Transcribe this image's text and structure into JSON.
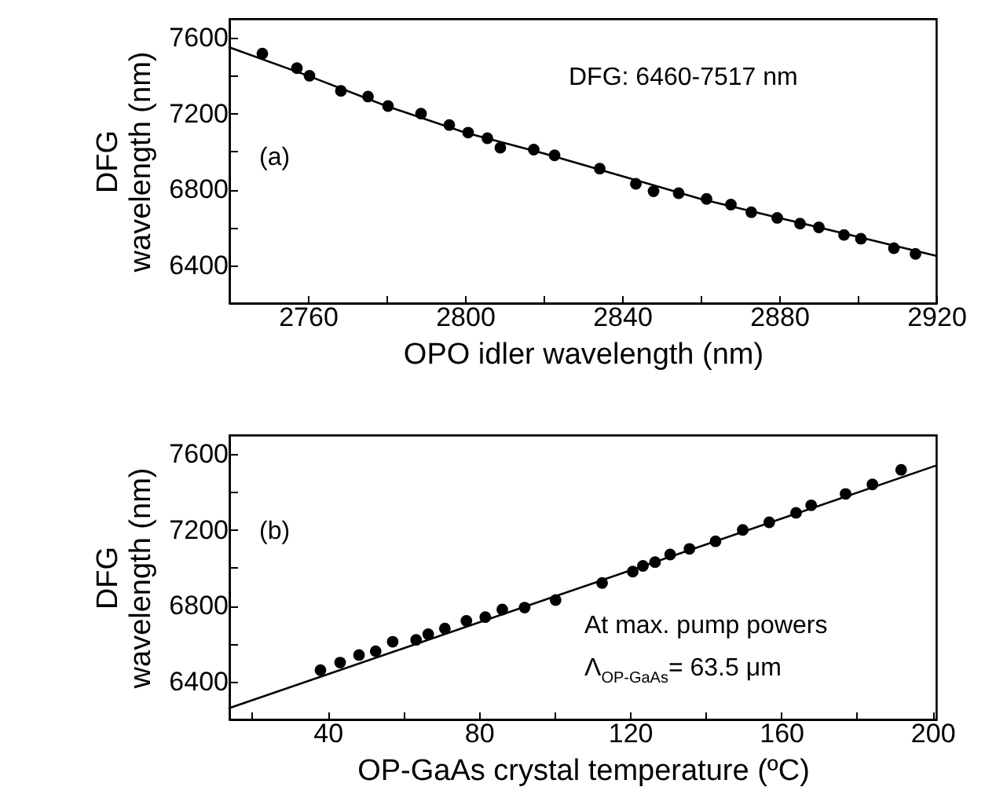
{
  "chart_data": [
    {
      "type": "scatter",
      "xlabel": "OPO idler wavelength (nm)",
      "ylabel": "DFG\nwavelength (nm)",
      "xlim": [
        2740,
        2920
      ],
      "ylim": [
        6200,
        7700
      ],
      "xticks": [
        2760,
        {
          "value": 2780,
          "label": null
        },
        2800,
        {
          "value": 2820,
          "label": null
        },
        2840,
        {
          "value": 2860,
          "label": null
        },
        2880,
        {
          "value": 2900,
          "label": null
        },
        2920
      ],
      "yticks": [
        {
          "value": 6200,
          "label": null
        },
        6400,
        {
          "value": 6600,
          "label": null
        },
        6800,
        {
          "value": 7000,
          "label": null
        },
        7200,
        {
          "value": 7400,
          "label": null
        },
        7600
      ],
      "series": [
        {
          "type": "scatter",
          "marker": "circle",
          "color": "#000000",
          "x": [
            2748.4,
            2757.2,
            2760.4,
            2768.4,
            2775.3,
            2780.4,
            2788.8,
            2796,
            2800.8,
            2805.7,
            2809,
            2817.5,
            2822.8,
            2834.3,
            2843.5,
            2848,
            2854.4,
            2861.5,
            2867.7,
            2872.9,
            2879.5,
            2885.3,
            2890.1,
            2896.5,
            2900.8,
            2909.2,
            2914.7
          ],
          "values": [
            7517,
            7440,
            7400,
            7320,
            7290,
            7240,
            7200,
            7140,
            7100,
            7070,
            7020,
            7010,
            6980,
            6910,
            6830,
            6790,
            6780,
            6750,
            6720,
            6680,
            6650,
            6620,
            6600,
            6560,
            6540,
            6490,
            6460
          ]
        },
        {
          "type": "line",
          "marker": "none",
          "color": "#000000",
          "x": [
            2740,
            2760,
            2780,
            2800,
            2820,
            2840,
            2860,
            2880,
            2900,
            2920
          ],
          "values": [
            7550,
            7400,
            7240,
            7100,
            6990,
            6870,
            6750,
            6650,
            6550,
            6450
          ]
        }
      ],
      "annotations": [
        "(a)",
        "DFG: 6460-7517 nm"
      ]
    },
    {
      "type": "scatter",
      "xlabel": "OP-GaAs crystal temperature (ºC)",
      "ylabel": "DFG\nwavelength (nm)",
      "xlim": [
        14,
        201
      ],
      "ylim": [
        6200,
        7700
      ],
      "xticks": [
        {
          "value": 20,
          "label": null
        },
        40,
        {
          "value": 60,
          "label": null
        },
        80,
        {
          "value": 100,
          "label": null
        },
        120,
        {
          "value": 140,
          "label": null
        },
        160,
        {
          "value": 180,
          "label": null
        },
        200
      ],
      "yticks": [
        {
          "value": 6200,
          "label": null
        },
        6400,
        {
          "value": 6600,
          "label": null
        },
        6800,
        {
          "value": 7000,
          "label": null
        },
        7200,
        {
          "value": 7400,
          "label": null
        },
        7600
      ],
      "series": [
        {
          "type": "scatter",
          "marker": "circle",
          "color": "#000000",
          "x": [
            38.1,
            43.3,
            48.3,
            52.7,
            57.2,
            63.4,
            66.6,
            71,
            76.7,
            81.7,
            86.2,
            92.1,
            100.3,
            112.6,
            120.7,
            123.4,
            126.6,
            130.6,
            135.7,
            142.6,
            149.8,
            156.8,
            163.9,
            167.9,
            177,
            184.1,
            191.7
          ],
          "values": [
            6460,
            6500,
            6540,
            6560,
            6610,
            6620,
            6650,
            6680,
            6720,
            6740,
            6780,
            6790,
            6830,
            6920,
            6980,
            7010,
            7030,
            7070,
            7100,
            7140,
            7200,
            7240,
            7290,
            7330,
            7390,
            7440,
            7517
          ]
        },
        {
          "type": "line",
          "marker": "none",
          "color": "#000000",
          "x": [
            14,
            201
          ],
          "values": [
            6260,
            7540
          ]
        }
      ],
      "annotations": [
        "(b)",
        "At max. pump powers",
        "Λ$_{OP-GaAs}$= 63.5 μm"
      ]
    }
  ]
}
